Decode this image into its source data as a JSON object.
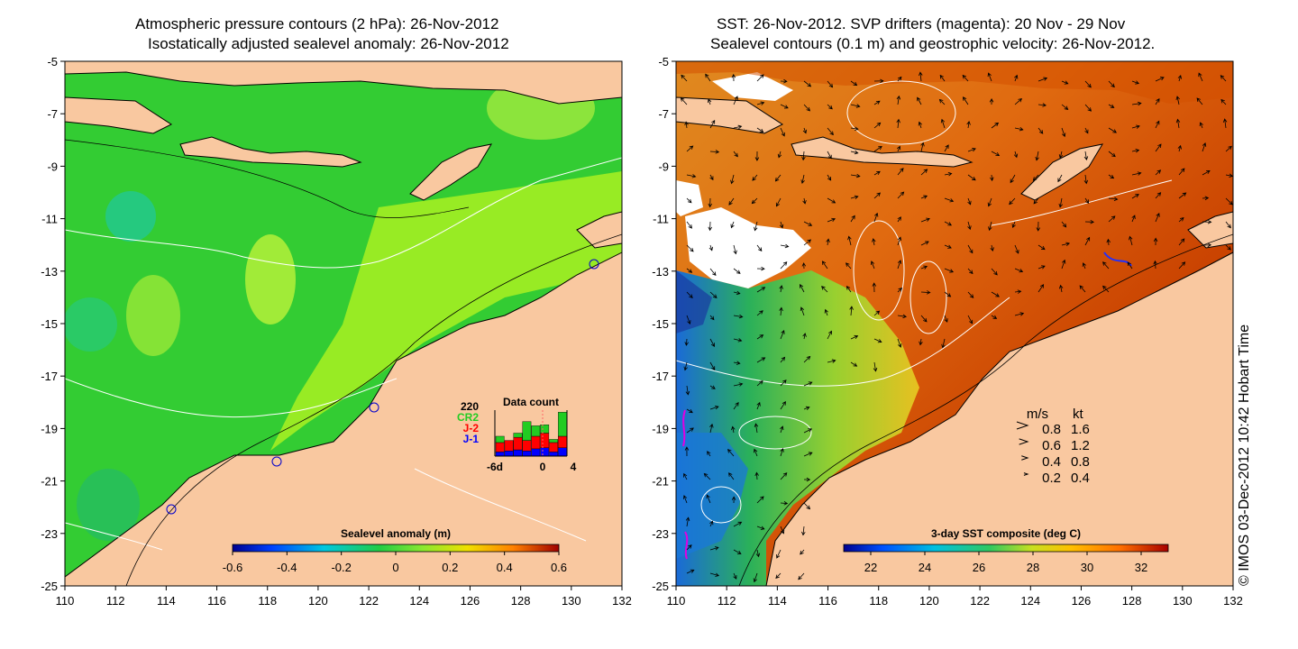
{
  "left_panel": {
    "title_line1": "Atmospheric pressure contours (2 hPa): 26-Nov-2012",
    "title_line2": "Isostatically adjusted sealevel anomaly: 26-Nov-2012",
    "colorbar_label": "Sealevel anomaly (m)",
    "colorbar_ticks": [
      "-0.6",
      "-0.4",
      "-0.2",
      "0",
      "0.2",
      "0.4",
      "0.6"
    ],
    "data_count": {
      "title": "Data count",
      "ymax_label": "220",
      "legend": [
        {
          "label": "CR2",
          "color": "#22cc22"
        },
        {
          "label": "J-2",
          "color": "#ff0000"
        },
        {
          "label": "J-1",
          "color": "#0000ff"
        }
      ],
      "x_ticks": [
        "-6d",
        "0",
        "4"
      ],
      "bars": [
        {
          "j1": 20,
          "j2": 45,
          "cr2": 30
        },
        {
          "j1": 25,
          "j2": 50,
          "cr2": 0
        },
        {
          "j1": 30,
          "j2": 60,
          "cr2": 20
        },
        {
          "j1": 25,
          "j2": 50,
          "cr2": 90
        },
        {
          "j1": 35,
          "j2": 60,
          "cr2": 50
        },
        {
          "j1": 40,
          "j2": 70,
          "cr2": 40
        },
        {
          "j1": 20,
          "j2": 45,
          "cr2": 15
        },
        {
          "j1": 40,
          "j2": 55,
          "cr2": 115
        }
      ]
    }
  },
  "right_panel": {
    "title_line1": "SST: 26-Nov-2012. SVP drifters (magenta): 20 Nov - 29 Nov",
    "title_line2": "Sealevel contours (0.1 m) and geostrophic velocity: 26-Nov-2012.",
    "colorbar_label": "3-day SST composite (deg C)",
    "colorbar_ticks": [
      "22",
      "24",
      "26",
      "28",
      "30",
      "32"
    ],
    "velocity_legend": {
      "header_ms": "m/s",
      "header_kt": "kt",
      "rows": [
        {
          "ms": "0.8",
          "kt": "1.6"
        },
        {
          "ms": "0.6",
          "kt": "1.2"
        },
        {
          "ms": "0.4",
          "kt": "0.8"
        },
        {
          "ms": "0.2",
          "kt": "0.4"
        }
      ]
    }
  },
  "axes": {
    "x_ticks": [
      "110",
      "112",
      "114",
      "116",
      "118",
      "120",
      "122",
      "124",
      "126",
      "128",
      "130",
      "132"
    ],
    "y_ticks": [
      "-5",
      "-7",
      "-9",
      "-11",
      "-13",
      "-15",
      "-17",
      "-19",
      "-21",
      "-23",
      "-25"
    ]
  },
  "credit": "© IMOS 03-Dec-2012 10:42 Hobart Time",
  "colors": {
    "land": "#f9c8a0",
    "sla_mid": "#33cc33",
    "sla_high": "#aaf022",
    "sst_hot": "#d45000",
    "sst_cool": "#3fbf5f",
    "contour": "#ffffff"
  }
}
